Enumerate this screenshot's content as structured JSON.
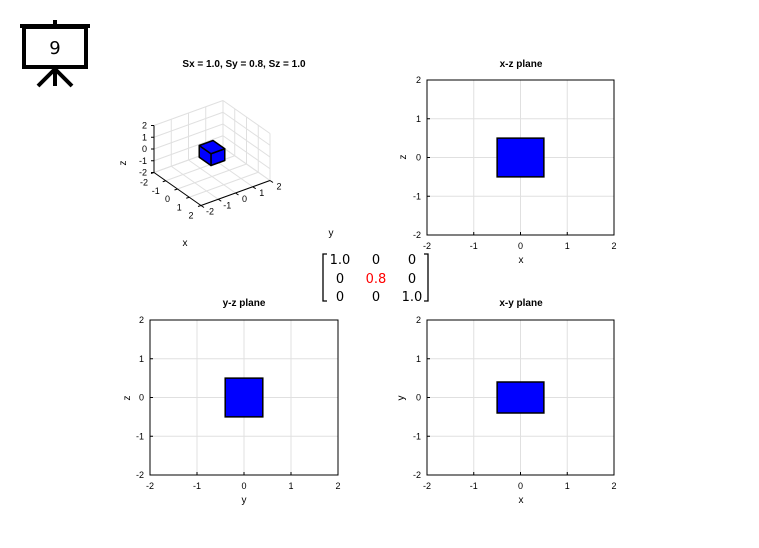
{
  "slide_number": "9",
  "colors": {
    "box": "#0000ff",
    "highlight": "#ff0000",
    "grid": "#e0e0e0"
  },
  "icons": {
    "board": "presentation-board-icon"
  },
  "chart_data": [
    {
      "type": "3d-box",
      "title": "Sx = 1.0, Sy = 0.8, Sz = 1.0",
      "xlabel": "x",
      "ylabel": "y",
      "zlabel": "z",
      "xlim": [
        -2,
        2
      ],
      "ylim": [
        -2,
        2
      ],
      "zlim": [
        -2,
        2
      ],
      "xticks": [
        "-2",
        "-1",
        "0",
        "1",
        "2"
      ],
      "yticks": [
        "-2",
        "-1",
        "0",
        "1",
        "2"
      ],
      "zticks": [
        "-2",
        "-1",
        "0",
        "1",
        "2"
      ],
      "box": {
        "x": [
          -0.5,
          0.5
        ],
        "y": [
          -0.4,
          0.4
        ],
        "z": [
          -0.5,
          0.5
        ]
      },
      "grid": true
    },
    {
      "type": "rect",
      "title": "x-z plane",
      "xlabel": "x",
      "ylabel": "z",
      "xlim": [
        -2,
        2
      ],
      "ylim": [
        -2,
        2
      ],
      "xticks": [
        "-2",
        "-1",
        "0",
        "1",
        "2"
      ],
      "yticks": [
        "-2",
        "-1",
        "0",
        "1",
        "2"
      ],
      "rect": {
        "x": [
          -0.5,
          0.5
        ],
        "y": [
          -0.5,
          0.5
        ]
      },
      "grid": true
    },
    {
      "type": "rect",
      "title": "y-z plane",
      "xlabel": "y",
      "ylabel": "z",
      "xlim": [
        -2,
        2
      ],
      "ylim": [
        -2,
        2
      ],
      "xticks": [
        "-2",
        "-1",
        "0",
        "1",
        "2"
      ],
      "yticks": [
        "-2",
        "-1",
        "0",
        "1",
        "2"
      ],
      "rect": {
        "x": [
          -0.4,
          0.4
        ],
        "y": [
          -0.5,
          0.5
        ]
      },
      "grid": true
    },
    {
      "type": "rect",
      "title": "x-y plane",
      "xlabel": "x",
      "ylabel": "y",
      "xlim": [
        -2,
        2
      ],
      "ylim": [
        -2,
        2
      ],
      "xticks": [
        "-2",
        "-1",
        "0",
        "1",
        "2"
      ],
      "yticks": [
        "-2",
        "-1",
        "0",
        "1",
        "2"
      ],
      "rect": {
        "x": [
          -0.5,
          0.5
        ],
        "y": [
          -0.4,
          0.4
        ]
      },
      "grid": true
    }
  ],
  "matrix": {
    "rows": [
      [
        "1.0",
        "0",
        "0"
      ],
      [
        "0",
        "0.8",
        "0"
      ],
      [
        "0",
        "0",
        "1.0"
      ]
    ],
    "highlight": [
      1,
      1
    ]
  }
}
